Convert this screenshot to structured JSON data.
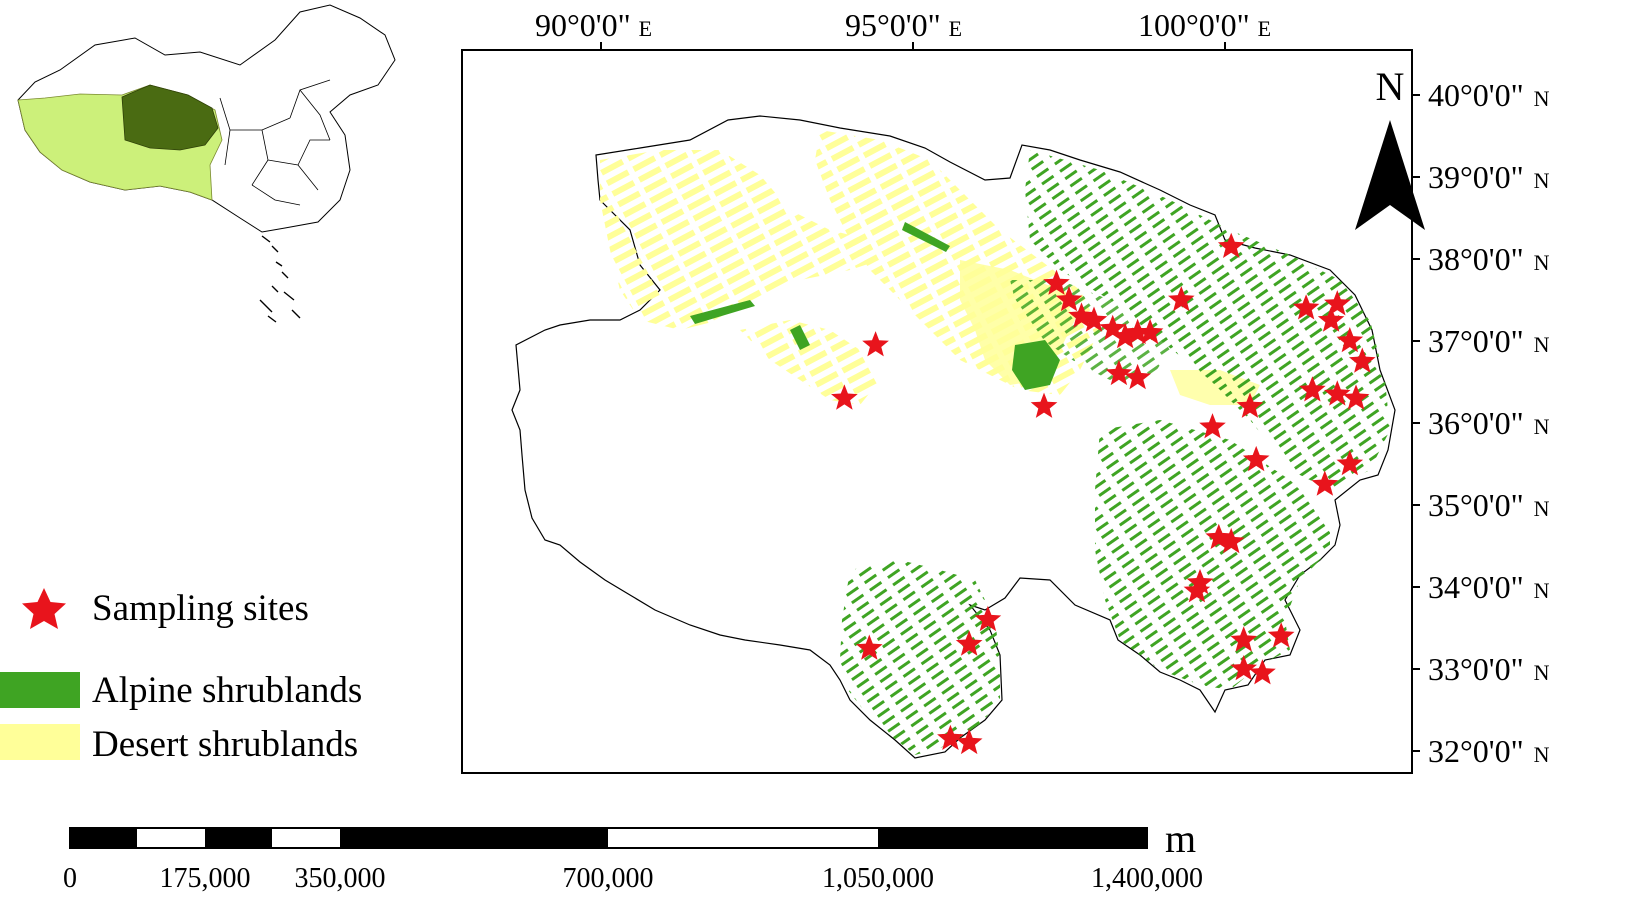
{
  "map": {
    "longitude_labels": [
      {
        "text": "90°0'0\"",
        "hemisphere": "E"
      },
      {
        "text": "95°0'0\"",
        "hemisphere": "E"
      },
      {
        "text": "100°0'0\"",
        "hemisphere": "E"
      }
    ],
    "latitude_labels": [
      {
        "text": "40°0'0\"",
        "hemisphere": "N"
      },
      {
        "text": "39°0'0\"",
        "hemisphere": "N"
      },
      {
        "text": "38°0'0\"",
        "hemisphere": "N"
      },
      {
        "text": "37°0'0\"",
        "hemisphere": "N"
      },
      {
        "text": "36°0'0\"",
        "hemisphere": "N"
      },
      {
        "text": "35°0'0\"",
        "hemisphere": "N"
      },
      {
        "text": "34°0'0\"",
        "hemisphere": "N"
      },
      {
        "text": "33°0'0\"",
        "hemisphere": "N"
      },
      {
        "text": "32°0'0\"",
        "hemisphere": "N"
      }
    ],
    "north_arrow": {
      "label": "N",
      "icon": "north-arrow-icon"
    }
  },
  "legend": {
    "items": [
      {
        "label": "Sampling sites",
        "icon": "star-icon",
        "color": "#e8141c"
      },
      {
        "label": "Alpine shrublands",
        "icon": "green-swatch",
        "color": "#3fa423"
      },
      {
        "label": "Desert shrublands",
        "icon": "yellow-swatch",
        "color": "#ffff99"
      }
    ]
  },
  "scale_bar": {
    "unit": "m",
    "ticks": [
      "0",
      "175,000",
      "350,000",
      "700,000",
      "1,050,000",
      "1,400,000"
    ]
  },
  "inset": {
    "highlight_color": "#4a6b12",
    "region_color": "#ccf07a"
  },
  "sampling_sites": [
    {
      "lon": 97.3,
      "lat": 37.7
    },
    {
      "lon": 97.5,
      "lat": 37.5
    },
    {
      "lon": 97.7,
      "lat": 37.3
    },
    {
      "lon": 97.9,
      "lat": 37.25
    },
    {
      "lon": 98.2,
      "lat": 37.15
    },
    {
      "lon": 98.4,
      "lat": 37.05
    },
    {
      "lon": 98.6,
      "lat": 37.1
    },
    {
      "lon": 98.8,
      "lat": 37.1
    },
    {
      "lon": 98.3,
      "lat": 36.6
    },
    {
      "lon": 98.6,
      "lat": 36.55
    },
    {
      "lon": 99.3,
      "lat": 37.5
    },
    {
      "lon": 100.1,
      "lat": 38.15
    },
    {
      "lon": 101.3,
      "lat": 37.4
    },
    {
      "lon": 101.7,
      "lat": 37.25
    },
    {
      "lon": 101.8,
      "lat": 37.45
    },
    {
      "lon": 102.0,
      "lat": 37.0
    },
    {
      "lon": 102.2,
      "lat": 36.75
    },
    {
      "lon": 101.4,
      "lat": 36.4
    },
    {
      "lon": 101.8,
      "lat": 36.35
    },
    {
      "lon": 102.1,
      "lat": 36.3
    },
    {
      "lon": 102.0,
      "lat": 35.5
    },
    {
      "lon": 101.6,
      "lat": 35.25
    },
    {
      "lon": 100.4,
      "lat": 36.2
    },
    {
      "lon": 99.8,
      "lat": 35.95
    },
    {
      "lon": 100.5,
      "lat": 35.55
    },
    {
      "lon": 99.9,
      "lat": 34.6
    },
    {
      "lon": 100.1,
      "lat": 34.55
    },
    {
      "lon": 99.6,
      "lat": 34.05
    },
    {
      "lon": 99.55,
      "lat": 33.95
    },
    {
      "lon": 100.3,
      "lat": 33.35
    },
    {
      "lon": 100.9,
      "lat": 33.4
    },
    {
      "lon": 100.3,
      "lat": 33.0
    },
    {
      "lon": 100.6,
      "lat": 32.95
    },
    {
      "lon": 97.1,
      "lat": 36.2
    },
    {
      "lon": 94.4,
      "lat": 36.95
    },
    {
      "lon": 93.9,
      "lat": 36.3
    },
    {
      "lon": 94.3,
      "lat": 33.25
    },
    {
      "lon": 96.2,
      "lat": 33.6
    },
    {
      "lon": 95.9,
      "lat": 33.3
    },
    {
      "lon": 95.6,
      "lat": 32.15
    },
    {
      "lon": 95.9,
      "lat": 32.1
    }
  ]
}
